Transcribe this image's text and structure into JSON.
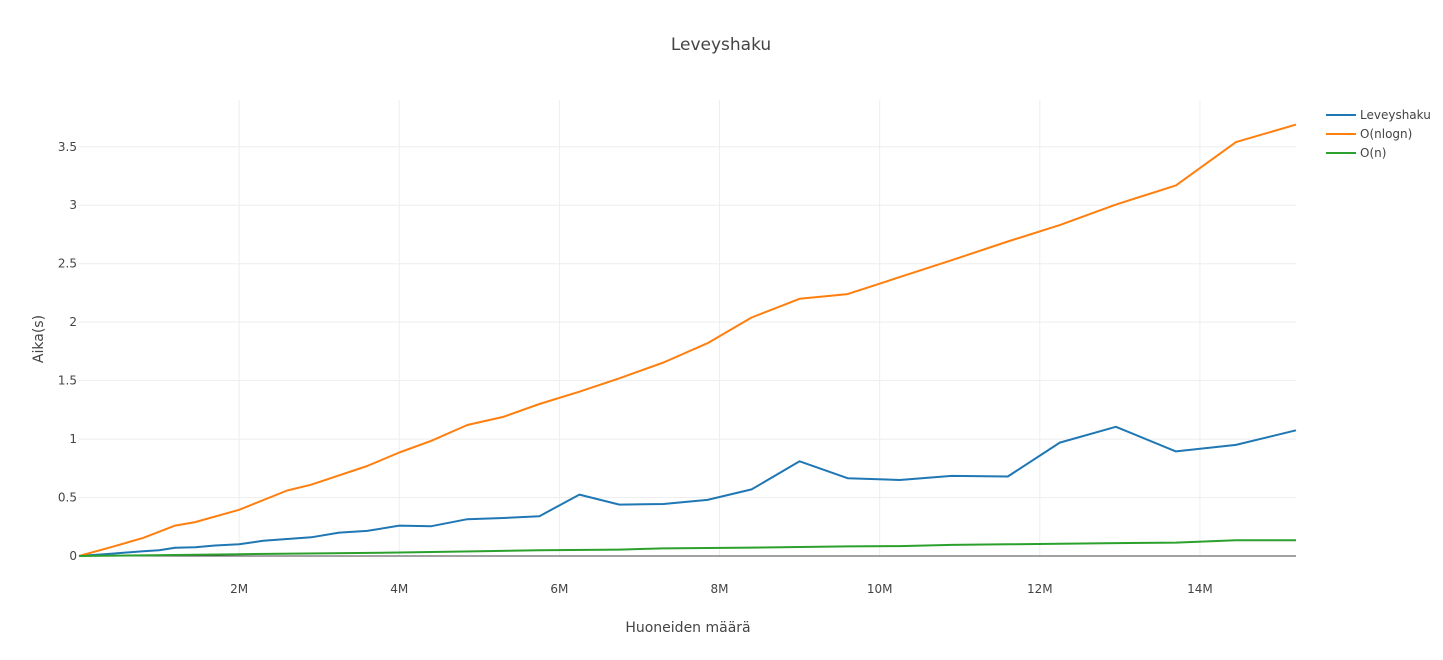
{
  "chart_data": {
    "type": "line",
    "title": "Leveyshaku",
    "xlabel": "Huoneiden määrä",
    "ylabel": "Aika(s)",
    "xlim": [
      0,
      15200000
    ],
    "ylim": [
      0,
      3.9
    ],
    "x_ticks": [
      2000000,
      4000000,
      6000000,
      8000000,
      10000000,
      12000000,
      14000000
    ],
    "x_tick_labels": [
      "2M",
      "4M",
      "6M",
      "8M",
      "10M",
      "12M",
      "14M"
    ],
    "y_ticks": [
      0,
      0.5,
      1,
      1.5,
      2,
      2.5,
      3,
      3.5
    ],
    "y_tick_labels": [
      "0",
      "0.5",
      "1",
      "1.5",
      "2",
      "2.5",
      "3",
      "3.5"
    ],
    "grid": true,
    "legend_position": "top-right",
    "series": [
      {
        "name": "Leveyshaku",
        "color": "#1f77b4",
        "points": [
          [
            0,
            0
          ],
          [
            400000,
            0.02
          ],
          [
            800000,
            0.04
          ],
          [
            1000000,
            0.05
          ],
          [
            1200000,
            0.07
          ],
          [
            1450000,
            0.075
          ],
          [
            1700000,
            0.09
          ],
          [
            2000000,
            0.1
          ],
          [
            2300000,
            0.13
          ],
          [
            2600000,
            0.145
          ],
          [
            2900000,
            0.16
          ],
          [
            3250000,
            0.2
          ],
          [
            3600000,
            0.215
          ],
          [
            4000000,
            0.26
          ],
          [
            4400000,
            0.255
          ],
          [
            4850000,
            0.315
          ],
          [
            5300000,
            0.325
          ],
          [
            5750000,
            0.34
          ],
          [
            6250000,
            0.525
          ],
          [
            6750000,
            0.44
          ],
          [
            7300000,
            0.445
          ],
          [
            7850000,
            0.48
          ],
          [
            8400000,
            0.57
          ],
          [
            9000000,
            0.81
          ],
          [
            9600000,
            0.665
          ],
          [
            10250000,
            0.65
          ],
          [
            10900000,
            0.685
          ],
          [
            11600000,
            0.68
          ],
          [
            12250000,
            0.97
          ],
          [
            12950000,
            1.105
          ],
          [
            13700000,
            0.895
          ],
          [
            14450000,
            0.95
          ],
          [
            15200000,
            1.075
          ]
        ]
      },
      {
        "name": "O(nlogn)",
        "color": "#ff7f0e",
        "points": [
          [
            0,
            0
          ],
          [
            400000,
            0.075
          ],
          [
            800000,
            0.155
          ],
          [
            1200000,
            0.26
          ],
          [
            1450000,
            0.29
          ],
          [
            2000000,
            0.395
          ],
          [
            2600000,
            0.56
          ],
          [
            2900000,
            0.61
          ],
          [
            3600000,
            0.77
          ],
          [
            4000000,
            0.885
          ],
          [
            4400000,
            0.985
          ],
          [
            4850000,
            1.12
          ],
          [
            5300000,
            1.19
          ],
          [
            5750000,
            1.3
          ],
          [
            6250000,
            1.405
          ],
          [
            6750000,
            1.52
          ],
          [
            7300000,
            1.655
          ],
          [
            7850000,
            1.82
          ],
          [
            8400000,
            2.04
          ],
          [
            9000000,
            2.2
          ],
          [
            9600000,
            2.24
          ],
          [
            10250000,
            2.385
          ],
          [
            10900000,
            2.53
          ],
          [
            11600000,
            2.69
          ],
          [
            12250000,
            2.83
          ],
          [
            12950000,
            3.005
          ],
          [
            13700000,
            3.17
          ],
          [
            14450000,
            3.54
          ],
          [
            15200000,
            3.69
          ]
        ]
      },
      {
        "name": "O(n)",
        "color": "#2ca02c",
        "points": [
          [
            0,
            0
          ],
          [
            800000,
            0.005
          ],
          [
            2000000,
            0.015
          ],
          [
            3000000,
            0.022
          ],
          [
            4000000,
            0.03
          ],
          [
            5000000,
            0.04
          ],
          [
            5750000,
            0.05
          ],
          [
            6750000,
            0.055
          ],
          [
            7300000,
            0.065
          ],
          [
            8400000,
            0.072
          ],
          [
            9600000,
            0.082
          ],
          [
            10250000,
            0.085
          ],
          [
            10900000,
            0.095
          ],
          [
            11600000,
            0.1
          ],
          [
            12250000,
            0.105
          ],
          [
            12950000,
            0.11
          ],
          [
            13700000,
            0.115
          ],
          [
            14450000,
            0.135
          ],
          [
            15200000,
            0.135
          ]
        ]
      }
    ]
  }
}
